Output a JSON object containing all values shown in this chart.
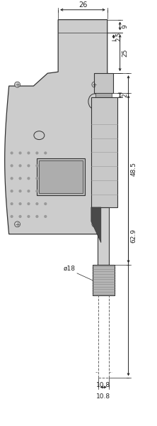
{
  "bg_color": "#ffffff",
  "frame_color": "#cccccc",
  "frame_edge": "#333333",
  "barrel_color": "#c8c8c8",
  "dark_color": "#555555",
  "dot_color": "#999999",
  "dim_color": "#222222",
  "label_26": "26",
  "label_9": "9",
  "label_2_5": "2.5",
  "label_25": "25",
  "label_2": "2",
  "label_48_5": "48.5",
  "label_62_9": "62.9",
  "label_dia18": "ø18",
  "label_10_8": "10.8",
  "figw": 2.22,
  "figh": 6.0,
  "dpi": 100
}
